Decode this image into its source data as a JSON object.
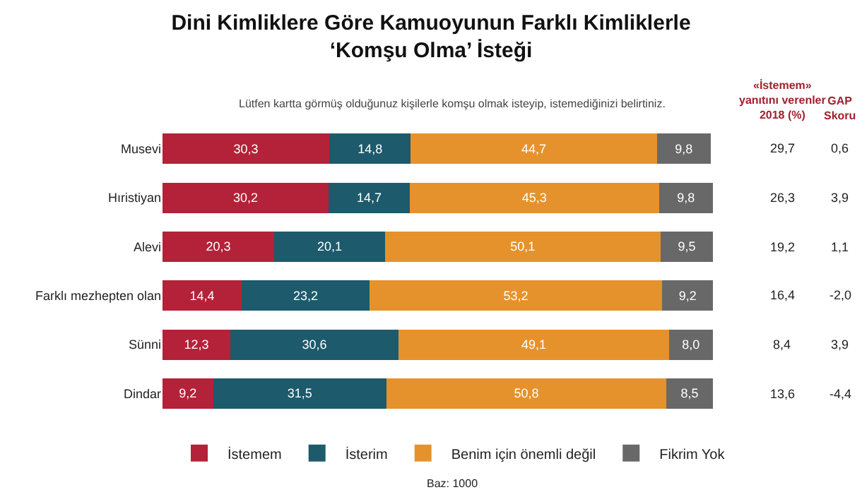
{
  "chart_data": {
    "type": "bar",
    "orientation": "horizontal",
    "stacked": true,
    "title": "Dini Kimliklere Göre Kamuoyunun Farklı Kimliklerle\n‘Komşu Olma’ İsteği",
    "subtitle": "Lütfen kartta görmüş olduğunuz kişilerle komşu olmak isteyip, istemediğinizi belirtiniz.",
    "categories": [
      "Musevi",
      "Hıristiyan",
      "Alevi",
      "Farklı mezhepten olan",
      "Sünni",
      "Dindar"
    ],
    "series": [
      {
        "name": "İstemem",
        "color": "#b32238",
        "values": [
          30.3,
          30.2,
          20.3,
          14.4,
          12.3,
          9.2
        ],
        "value_labels": [
          "30,3",
          "30,2",
          "20,3",
          "14,4",
          "12,3",
          "9,2"
        ]
      },
      {
        "name": "İsterim",
        "color": "#1d5a6c",
        "values": [
          14.8,
          14.7,
          20.1,
          23.2,
          30.6,
          31.5
        ],
        "value_labels": [
          "14,8",
          "14,7",
          "20,1",
          "23,2",
          "30,6",
          "31,5"
        ]
      },
      {
        "name": "Benim için önemli değil",
        "color": "#e6922c",
        "values": [
          44.7,
          45.3,
          50.1,
          53.2,
          49.1,
          50.8
        ],
        "value_labels": [
          "44,7",
          "45,3",
          "50,1",
          "53,2",
          "49,1",
          "50,8"
        ]
      },
      {
        "name": "Fikrim Yok",
        "color": "#686868",
        "values": [
          9.8,
          9.8,
          9.5,
          9.2,
          8.0,
          8.5
        ],
        "value_labels": [
          "9,8",
          "9,8",
          "9,5",
          "9,2",
          "8,0",
          "8,5"
        ]
      }
    ],
    "tick_labels": "y",
    "legend": "bottom",
    "annotations": [
      "«İstemem»\nyanıtını verenler\n2018 (%)",
      "GAP\nSkoru",
      "29,7",
      "26,3",
      "19,2",
      "16,4",
      "8,4",
      "13,6",
      "0,6",
      "3,9",
      "1,1",
      "-2,0",
      "3,9",
      "-4,4",
      "Baz: 1000"
    ]
  }
}
